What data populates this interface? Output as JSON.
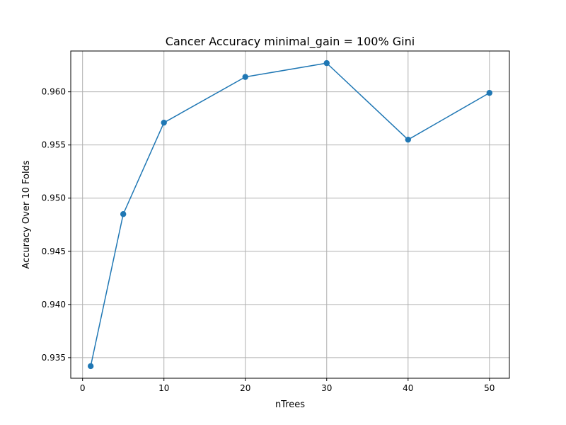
{
  "chart_data": {
    "type": "line",
    "title": "Cancer Accuracy minimal_gain = 100% Gini",
    "xlabel": "nTrees",
    "ylabel": "Accuracy Over 10 Folds",
    "x": [
      1,
      5,
      10,
      20,
      30,
      40,
      50
    ],
    "series": [
      {
        "values": [
          0.9342,
          0.9485,
          0.9571,
          0.9614,
          0.9627,
          0.9555,
          0.9599
        ],
        "color": "#1f77b4",
        "marker": "circle"
      }
    ],
    "xlim": [
      -1.45,
      52.45
    ],
    "ylim": [
      0.93306,
      0.96384
    ],
    "xticks": [
      0,
      10,
      20,
      30,
      40,
      50
    ],
    "xtick_labels": [
      "0",
      "10",
      "20",
      "30",
      "40",
      "50"
    ],
    "yticks": [
      0.935,
      0.94,
      0.945,
      0.95,
      0.955,
      0.96
    ],
    "ytick_labels": [
      "0.935",
      "0.940",
      "0.945",
      "0.950",
      "0.955",
      "0.960"
    ],
    "grid": true,
    "legend": false
  }
}
